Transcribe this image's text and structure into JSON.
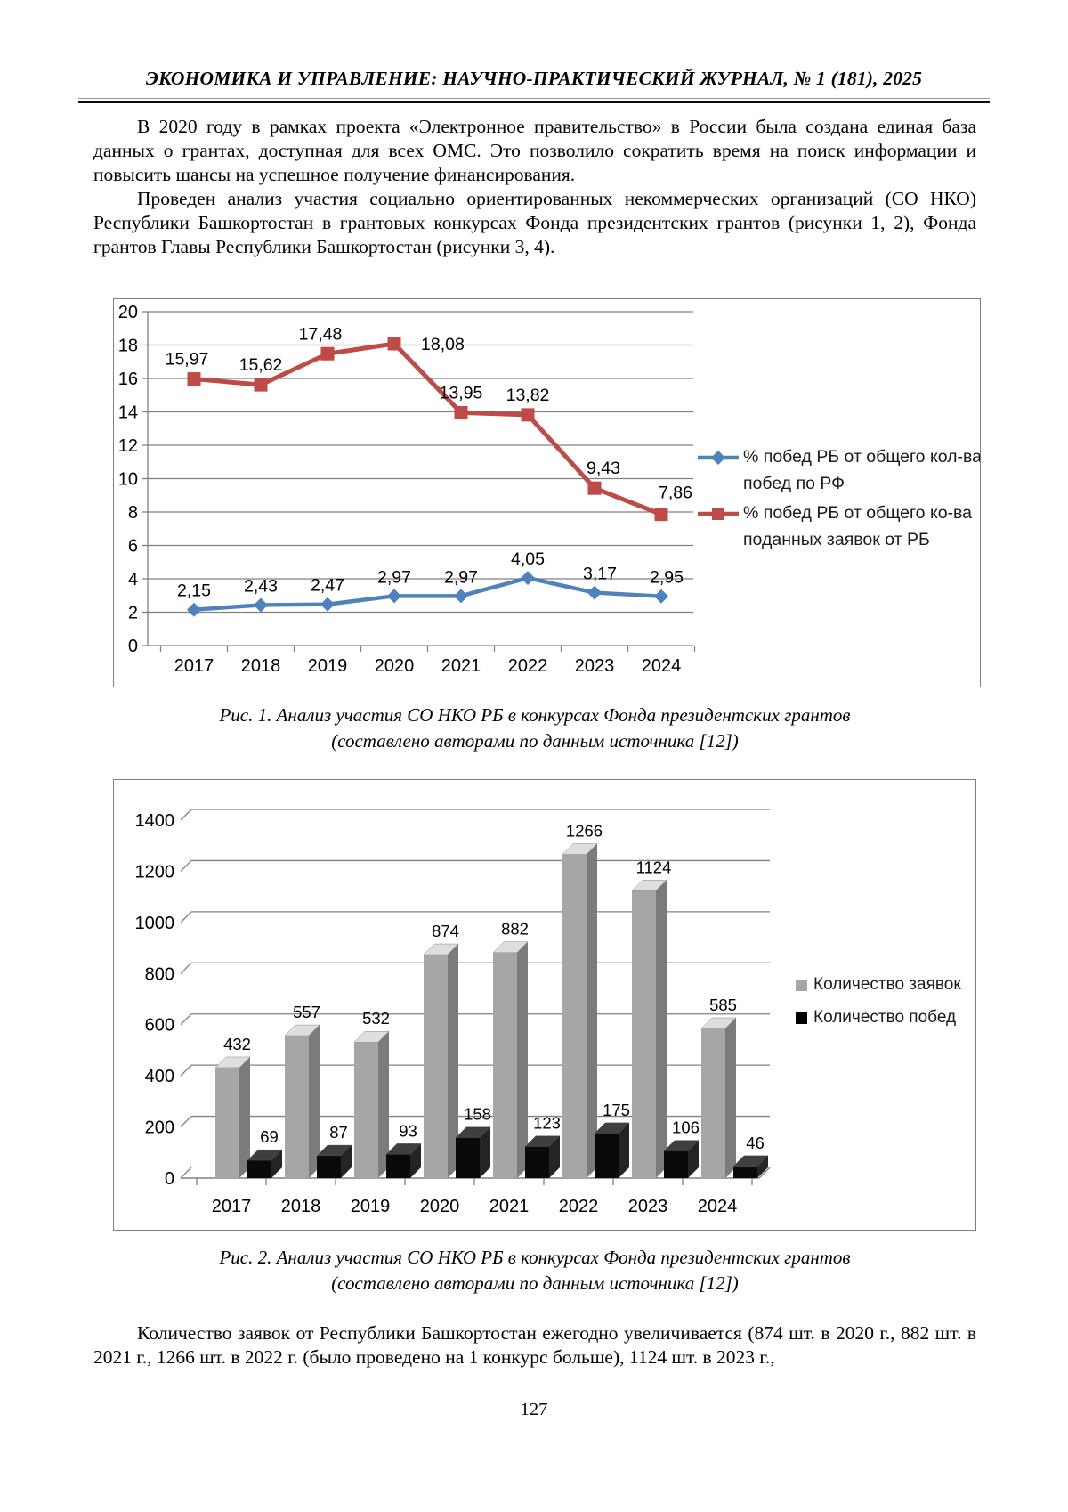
{
  "header": "ЭКОНОМИКА И УПРАВЛЕНИЕ: НАУЧНО-ПРАКТИЧЕСКИЙ ЖУРНАЛ, № 1 (181), 2025",
  "paragraphs": {
    "p1": "В 2020 году в рамках проекта «Электронное правительство» в России была создана единая база данных о грантах, доступная для всех ОМС. Это позволило сократить время на поиск информации и повысить шансы на успешное получение финансирования.",
    "p2": "Проведен анализ участия социально ориентированных некоммерческих организаций (СО НКО) Республики Башкортостан в грантовых конкурсах Фонда президентских грантов (рисунки 1, 2), Фонда грантов Главы Республики Башкортостан (рисунки 3, 4).",
    "p3": "Количество заявок от Республики Башкортостан ежегодно увеличивается (874 шт. в 2020 г., 882 шт. в 2021 г., 1266 шт. в 2022 г. (было проведено на 1 конкурс больше), 1124 шт. в 2023 г.,"
  },
  "captions": {
    "fig1_line1": "Рис. 1. Анализ участия СО НКО РБ в конкурсах Фонда президентских грантов",
    "fig1_line2": "(составлено авторами по данным источника [12])",
    "fig2_line1": "Рис. 2. Анализ участия СО НКО РБ в конкурсах Фонда президентских грантов",
    "fig2_line2": "(составлено авторами по данным источника [12])"
  },
  "page_number": "127",
  "chart_data": [
    {
      "type": "line",
      "title": "",
      "categories": [
        "2017",
        "2018",
        "2019",
        "2020",
        "2021",
        "2022",
        "2023",
        "2024"
      ],
      "series": [
        {
          "name": "% побед РБ от общего кол-ва побед по РФ",
          "marker": "diamond",
          "color": "#4F81BD",
          "values": [
            2.15,
            2.43,
            2.47,
            2.97,
            2.97,
            4.05,
            3.17,
            2.95
          ],
          "labels": [
            "2,15",
            "2,43",
            "2,47",
            "2,97",
            "2,97",
            "4,05",
            "3,17",
            "2,95"
          ]
        },
        {
          "name": "% побед РБ от общего ко-ва поданных заявок от РБ",
          "marker": "square",
          "color": "#BE4B48",
          "values": [
            15.97,
            15.62,
            17.48,
            18.08,
            13.95,
            13.82,
            9.43,
            7.86
          ],
          "labels": [
            "15,97",
            "15,62",
            "17,48",
            "18,08",
            "13,95",
            "13,82",
            "9,43",
            "7,86"
          ]
        }
      ],
      "ylim": [
        0,
        20
      ],
      "ytick": 2,
      "grid": true,
      "legend_position": "right",
      "grid_color": "#808080"
    },
    {
      "type": "bar",
      "title": "",
      "style": "3d",
      "categories": [
        "2017",
        "2018",
        "2019",
        "2020",
        "2021",
        "2022",
        "2023",
        "2024"
      ],
      "series": [
        {
          "name": "Количество заявок",
          "color": "#A6A6A6",
          "values": [
            432,
            557,
            532,
            874,
            882,
            1266,
            1124,
            585
          ]
        },
        {
          "name": "Количество побед",
          "color": "#000000",
          "values": [
            69,
            87,
            93,
            158,
            123,
            175,
            106,
            46
          ]
        }
      ],
      "ylim": [
        0,
        1400
      ],
      "ytick": 200,
      "grid": true,
      "legend_position": "right",
      "grid_color": "#808080"
    }
  ]
}
